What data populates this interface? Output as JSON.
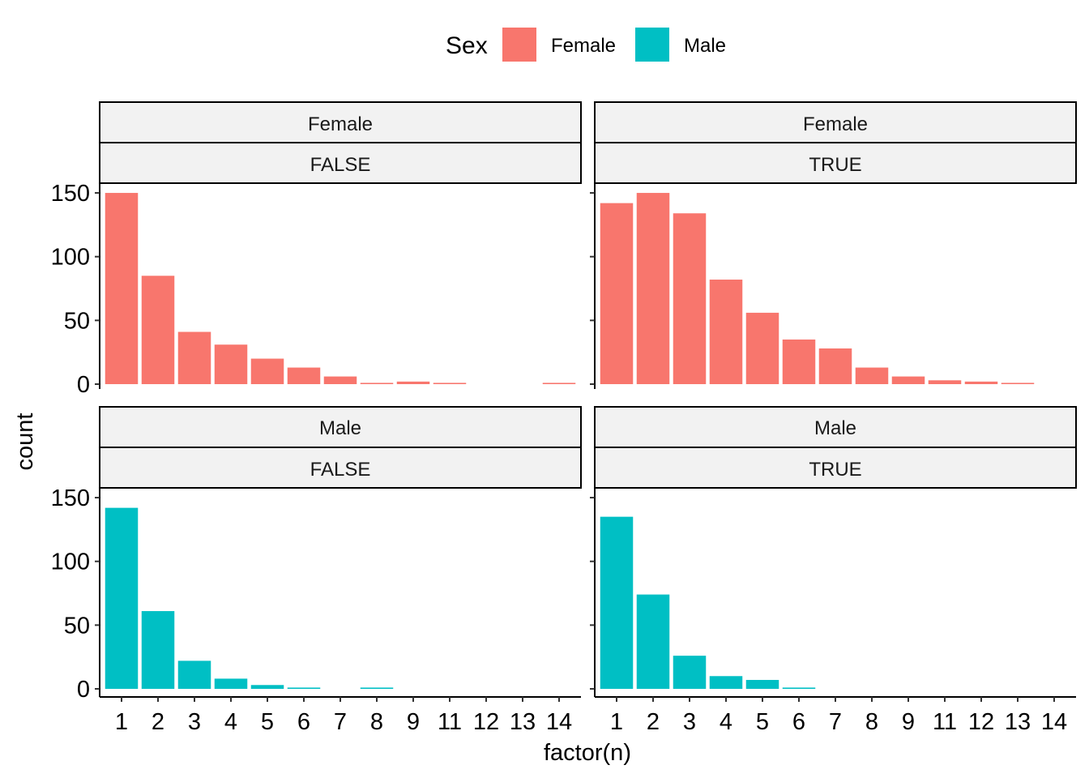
{
  "chart_data": {
    "type": "bar",
    "xlabel": "factor(n)",
    "ylabel": "count",
    "ylim": [
      0,
      150
    ],
    "yticks": [
      0,
      50,
      100,
      150
    ],
    "categories": [
      "1",
      "2",
      "3",
      "4",
      "5",
      "6",
      "7",
      "8",
      "9",
      "11",
      "12",
      "13",
      "14"
    ],
    "grid": false,
    "legend": {
      "title": "Sex",
      "position": "top",
      "entries": [
        {
          "label": "Female",
          "color": "#F8766D"
        },
        {
          "label": "Male",
          "color": "#00BFC4"
        }
      ]
    },
    "facets": [
      {
        "row": "Female",
        "col": "FALSE",
        "color": "#F8766D",
        "values": [
          150,
          85,
          41,
          31,
          20,
          13,
          6,
          1,
          2,
          1,
          0,
          0,
          1
        ]
      },
      {
        "row": "Female",
        "col": "TRUE",
        "color": "#F8766D",
        "values": [
          142,
          150,
          134,
          82,
          56,
          35,
          28,
          13,
          6,
          3,
          2,
          1,
          0
        ]
      },
      {
        "row": "Male",
        "col": "FALSE",
        "color": "#00BFC4",
        "values": [
          142,
          61,
          22,
          8,
          3,
          1,
          0,
          1,
          0,
          0,
          0,
          0,
          0
        ]
      },
      {
        "row": "Male",
        "col": "TRUE",
        "color": "#00BFC4",
        "values": [
          135,
          74,
          26,
          10,
          7,
          1,
          0,
          0,
          0,
          0,
          0,
          0,
          0
        ]
      }
    ]
  }
}
